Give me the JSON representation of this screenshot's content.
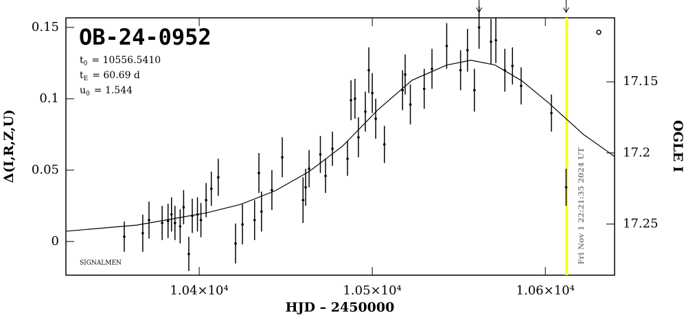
{
  "chart_data": {
    "type": "scatter",
    "title": "OB-24-0952",
    "parameters": [
      {
        "symbol": "t",
        "sub": "0",
        "text": "= 10556.5410"
      },
      {
        "symbol": "t",
        "sub": "E",
        "text": "= 60.69 d"
      },
      {
        "symbol": "u",
        "sub": "0",
        "text": "= 1.544"
      }
    ],
    "note": "SIGNALMEN",
    "xlabel": "HJD – 2450000",
    "ylabel": "Δ(I,R,Z,U)",
    "y2label": "OGLE I",
    "annotation": "Fri Nov  1 22:21:35 2024 UT",
    "xlim": [
      10323,
      10640
    ],
    "ylim": [
      -0.0236,
      0.1567
    ],
    "y2lim": [
      17.286,
      17.105
    ],
    "xticks": [
      {
        "value": 10400,
        "label": "1.04×10⁴"
      },
      {
        "value": 10500,
        "label": "1.05×10⁴"
      },
      {
        "value": 10600,
        "label": "1.06×10⁴"
      }
    ],
    "yticks": [
      0,
      0.05,
      0.1,
      0.15
    ],
    "y2ticks": [
      17.15,
      17.2,
      17.25
    ],
    "point_color": "#000000",
    "model_color": "#000000",
    "points": {
      "x": [
        10356.7,
        10367.4,
        10371,
        10378.6,
        10382,
        10384,
        10386,
        10389,
        10391,
        10394,
        10396,
        10399,
        10401,
        10404,
        10407,
        10411,
        10421,
        10425,
        10432,
        10434.5,
        10436,
        10442,
        10448,
        10460,
        10461.5,
        10463.5,
        10470,
        10473,
        10477,
        10485.7,
        10487.7,
        10490,
        10492,
        10496,
        10498,
        10500,
        10502,
        10507,
        10517.5,
        10519,
        10522,
        10530,
        10534.5,
        10543,
        10551,
        10555,
        10559,
        10561.7,
        10568.6,
        10571.4,
        10576.6,
        10581,
        10586,
        10603.5,
        10612
      ],
      "values": [
        0.0034,
        0.0058,
        0.015,
        0.013,
        0.0144,
        0.019,
        0.013,
        0.0106,
        0.024,
        -0.0087,
        0.018,
        0.019,
        0.015,
        0.029,
        0.037,
        0.045,
        -0.0014,
        0.012,
        0.015,
        0.048,
        0.021,
        0.036,
        0.059,
        0.029,
        0.038,
        0.051,
        0.061,
        0.046,
        0.065,
        0.058,
        0.099,
        0.1,
        0.073,
        0.091,
        0.12,
        0.104,
        0.086,
        0.068,
        0.106,
        0.117,
        0.096,
        0.107,
        0.121,
        0.137,
        0.12,
        0.134,
        0.106,
        0.15,
        0.14,
        0.141,
        0.12,
        0.123,
        0.109,
        0.09,
        0.038
      ],
      "errors": [
        0.0106,
        0.013,
        0.013,
        0.012,
        0.012,
        0.012,
        0.012,
        0.012,
        0.012,
        0.012,
        0.012,
        0.012,
        0.012,
        0.012,
        0.012,
        0.013,
        0.014,
        0.014,
        0.014,
        0.014,
        0.014,
        0.014,
        0.014,
        0.016,
        0.013,
        0.013,
        0.013,
        0.012,
        0.012,
        0.012,
        0.014,
        0.014,
        0.014,
        0.014,
        0.016,
        0.014,
        0.014,
        0.013,
        0.014,
        0.014,
        0.014,
        0.014,
        0.014,
        0.016,
        0.014,
        0.015,
        0.015,
        0.015,
        0.016,
        0.016,
        0.015,
        0.013,
        0.013,
        0.013,
        0.013
      ]
    },
    "model": {
      "x": [
        10323,
        10364,
        10404,
        10424,
        10444,
        10463.5,
        10483,
        10503,
        10523,
        10543,
        10557,
        10571,
        10586.5,
        10602,
        10622,
        10640
      ],
      "values": [
        0.0072,
        0.0115,
        0.02,
        0.026,
        0.0356,
        0.049,
        0.067,
        0.092,
        0.113,
        0.1236,
        0.127,
        0.1236,
        0.1125,
        0.097,
        0.075,
        0.0596
      ]
    },
    "markers_x": [
      10561.7,
      10612
    ],
    "now_line_x": 10612.3,
    "now_line_color": "#ffff00"
  }
}
